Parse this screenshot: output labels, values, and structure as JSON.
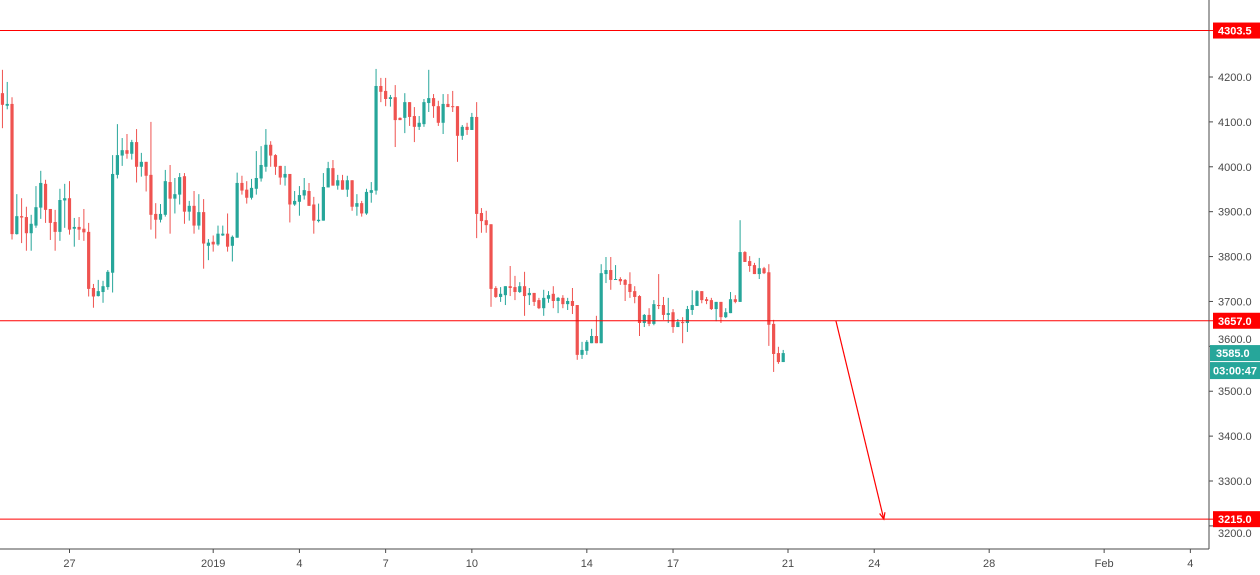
{
  "chart_data": {
    "type": "candlestick",
    "interval": "4h",
    "colors": {
      "up": "#26a69a",
      "down": "#ef5350",
      "drawing": "#ff0000",
      "axis_text": "#4a4a4a",
      "last_price_tag": "#26a69a"
    },
    "y_range": [
      3180,
      4340
    ],
    "y_ticks": [
      {
        "value": 4200,
        "label": "4200.0"
      },
      {
        "value": 4100,
        "label": "4100.0"
      },
      {
        "value": 4000,
        "label": "4000.0"
      },
      {
        "value": 3900,
        "label": "3900.0"
      },
      {
        "value": 3800,
        "label": "3800.0"
      },
      {
        "value": 3700,
        "label": "3700.0"
      },
      {
        "value": 3600,
        "label": "3600.0"
      },
      {
        "value": 3500,
        "label": "3500.0"
      },
      {
        "value": 3400,
        "label": "3400.0"
      },
      {
        "value": 3300,
        "label": "3300.0"
      },
      {
        "value": 3200,
        "label": "3200.0"
      }
    ],
    "x_ticks": [
      {
        "date": "2018-12-27",
        "label": "27"
      },
      {
        "date": "2019-01-01",
        "label": "2019"
      },
      {
        "date": "2019-01-04",
        "label": "4"
      },
      {
        "date": "2019-01-07",
        "label": "7"
      },
      {
        "date": "2019-01-10",
        "label": "10"
      },
      {
        "date": "2019-01-14",
        "label": "14"
      },
      {
        "date": "2019-01-17",
        "label": "17"
      },
      {
        "date": "2019-01-21",
        "label": "21"
      },
      {
        "date": "2019-01-24",
        "label": "24"
      },
      {
        "date": "2019-01-28",
        "label": "28"
      },
      {
        "date": "2019-02-01",
        "label": "Feb"
      },
      {
        "date": "2019-02-04",
        "label": "4"
      }
    ],
    "horizontal_lines": [
      {
        "price": 4303.5,
        "label": "4303.5"
      },
      {
        "price": 3657.0,
        "label": "3657.0"
      },
      {
        "price": 3215.0,
        "label": "3215.0"
      }
    ],
    "trend_arrow": {
      "from": {
        "time": "2019-01-22T16:00",
        "price": 3657
      },
      "to": {
        "time": "2019-01-24T08:00",
        "price": 3215
      }
    },
    "last_price": {
      "price": 3585.0,
      "label": "3585.0",
      "countdown": "03:00:47"
    },
    "columns": [
      "time",
      "open",
      "high",
      "low",
      "close"
    ],
    "candles": [
      [
        "2018-12-24T16:00",
        4164,
        4216,
        4086,
        4138
      ],
      [
        "2018-12-24T20:00",
        4136,
        4189,
        4128,
        4140
      ],
      [
        "2018-12-25T00:00",
        4140,
        4155,
        3838,
        3850
      ],
      [
        "2018-12-25T04:00",
        3850,
        3939,
        3849,
        3890
      ],
      [
        "2018-12-25T08:00",
        3890,
        3930,
        3830,
        3887
      ],
      [
        "2018-12-25T12:00",
        3888,
        3911,
        3813,
        3852
      ],
      [
        "2018-12-25T16:00",
        3852,
        3893,
        3813,
        3873
      ],
      [
        "2018-12-25T20:00",
        3869,
        3957,
        3864,
        3910
      ],
      [
        "2018-12-26T00:00",
        3909,
        3991,
        3884,
        3964
      ],
      [
        "2018-12-26T04:00",
        3962,
        3971,
        3875,
        3904
      ],
      [
        "2018-12-26T08:00",
        3906,
        3906,
        3837,
        3875
      ],
      [
        "2018-12-26T12:00",
        3877,
        3904,
        3813,
        3855
      ],
      [
        "2018-12-26T16:00",
        3855,
        3951,
        3835,
        3926
      ],
      [
        "2018-12-26T20:00",
        3925,
        3962,
        3864,
        3930
      ],
      [
        "2018-12-27T00:00",
        3930,
        3968,
        3849,
        3860
      ],
      [
        "2018-12-27T04:00",
        3862,
        3886,
        3822,
        3866
      ],
      [
        "2018-12-27T08:00",
        3866,
        3888,
        3837,
        3860
      ],
      [
        "2018-12-27T12:00",
        3862,
        3906,
        3835,
        3854
      ],
      [
        "2018-12-27T16:00",
        3855,
        3875,
        3711,
        3728
      ],
      [
        "2018-12-27T20:00",
        3730,
        3739,
        3686,
        3711
      ],
      [
        "2018-12-28T00:00",
        3712,
        3748,
        3711,
        3723
      ],
      [
        "2018-12-28T04:00",
        3721,
        3746,
        3697,
        3734
      ],
      [
        "2018-12-28T08:00",
        3732,
        3770,
        3726,
        3766
      ],
      [
        "2018-12-28T12:00",
        3764,
        4026,
        3720,
        3984
      ],
      [
        "2018-12-28T16:00",
        3982,
        4095,
        3974,
        4026
      ],
      [
        "2018-12-28T20:00",
        4025,
        4064,
        4002,
        4037
      ],
      [
        "2018-12-29T00:00",
        4037,
        4073,
        4018,
        4029
      ],
      [
        "2018-12-29T04:00",
        4029,
        4060,
        4016,
        4055
      ],
      [
        "2018-12-29T08:00",
        4055,
        4084,
        3965,
        4000
      ],
      [
        "2018-12-29T12:00",
        4000,
        4031,
        3978,
        4011
      ],
      [
        "2018-12-29T16:00",
        4011,
        4011,
        3945,
        3980
      ],
      [
        "2018-12-29T20:00",
        3982,
        4100,
        3860,
        3893
      ],
      [
        "2018-12-30T00:00",
        3895,
        3919,
        3840,
        3882
      ],
      [
        "2018-12-30T04:00",
        3882,
        3917,
        3876,
        3895
      ],
      [
        "2018-12-30T08:00",
        3893,
        3993,
        3889,
        3968
      ],
      [
        "2018-12-30T12:00",
        3966,
        4004,
        3851,
        3929
      ],
      [
        "2018-12-30T16:00",
        3929,
        3975,
        3896,
        3939
      ],
      [
        "2018-12-30T20:00",
        3938,
        3986,
        3916,
        3977
      ],
      [
        "2018-12-31T00:00",
        3979,
        3986,
        3873,
        3900
      ],
      [
        "2018-12-31T04:00",
        3900,
        3924,
        3880,
        3913
      ],
      [
        "2018-12-31T08:00",
        3913,
        3946,
        3851,
        3869
      ],
      [
        "2018-12-31T12:00",
        3869,
        3939,
        3860,
        3899
      ],
      [
        "2018-12-31T16:00",
        3899,
        3928,
        3773,
        3829
      ],
      [
        "2018-12-31T20:00",
        3824,
        3839,
        3792,
        3831
      ],
      [
        "2019-01-01T00:00",
        3833,
        3847,
        3811,
        3827
      ],
      [
        "2019-01-01T04:00",
        3827,
        3869,
        3824,
        3851
      ],
      [
        "2019-01-01T08:00",
        3847,
        3869,
        3846,
        3851
      ],
      [
        "2019-01-01T12:00",
        3851,
        3896,
        3811,
        3822
      ],
      [
        "2019-01-01T16:00",
        3824,
        3847,
        3789,
        3844
      ],
      [
        "2019-01-01T20:00",
        3842,
        3987,
        3842,
        3964
      ],
      [
        "2019-01-02T00:00",
        3964,
        3980,
        3938,
        3947
      ],
      [
        "2019-01-02T04:00",
        3949,
        3968,
        3918,
        3931
      ],
      [
        "2019-01-02T08:00",
        3931,
        3973,
        3927,
        3953
      ],
      [
        "2019-01-02T12:00",
        3951,
        4035,
        3938,
        3975
      ],
      [
        "2019-01-02T16:00",
        3974,
        4046,
        3967,
        4004
      ],
      [
        "2019-01-02T20:00",
        4000,
        4084,
        3989,
        4049
      ],
      [
        "2019-01-03T00:00",
        4049,
        4057,
        4000,
        4025
      ],
      [
        "2019-01-03T04:00",
        4026,
        4028,
        3982,
        4000
      ],
      [
        "2019-01-03T08:00",
        4002,
        4002,
        3960,
        3976
      ],
      [
        "2019-01-03T12:00",
        3976,
        4002,
        3958,
        3984
      ],
      [
        "2019-01-03T16:00",
        3984,
        3984,
        3876,
        3916
      ],
      [
        "2019-01-03T20:00",
        3916,
        3946,
        3913,
        3924
      ],
      [
        "2019-01-04T00:00",
        3922,
        3957,
        3891,
        3937
      ],
      [
        "2019-01-04T04:00",
        3936,
        3975,
        3927,
        3948
      ],
      [
        "2019-01-04T08:00",
        3946,
        3964,
        3913,
        3913
      ],
      [
        "2019-01-04T12:00",
        3916,
        3933,
        3851,
        3880
      ],
      [
        "2019-01-04T16:00",
        3879,
        3918,
        3876,
        3882
      ],
      [
        "2019-01-04T20:00",
        3880,
        3986,
        3880,
        3955
      ],
      [
        "2019-01-05T00:00",
        3954,
        4011,
        3954,
        3997
      ],
      [
        "2019-01-05T04:00",
        3997,
        4015,
        3958,
        3958
      ],
      [
        "2019-01-05T08:00",
        3958,
        3982,
        3949,
        3970
      ],
      [
        "2019-01-05T12:00",
        3970,
        3982,
        3949,
        3949
      ],
      [
        "2019-01-05T16:00",
        3949,
        3980,
        3933,
        3970
      ],
      [
        "2019-01-05T20:00",
        3970,
        3970,
        3902,
        3911
      ],
      [
        "2019-01-06T00:00",
        3911,
        3939,
        3891,
        3919
      ],
      [
        "2019-01-06T04:00",
        3919,
        3924,
        3889,
        3896
      ],
      [
        "2019-01-06T08:00",
        3896,
        3951,
        3893,
        3944
      ],
      [
        "2019-01-06T12:00",
        3942,
        3966,
        3920,
        3948
      ],
      [
        "2019-01-06T16:00",
        3947,
        4218,
        3938,
        4180
      ],
      [
        "2019-01-06T20:00",
        4180,
        4198,
        4144,
        4167
      ],
      [
        "2019-01-07T00:00",
        4169,
        4198,
        4135,
        4151
      ],
      [
        "2019-01-07T04:00",
        4151,
        4160,
        4134,
        4155
      ],
      [
        "2019-01-07T08:00",
        4155,
        4182,
        4044,
        4104
      ],
      [
        "2019-01-07T12:00",
        4109,
        4110,
        4104,
        4104
      ],
      [
        "2019-01-07T16:00",
        4109,
        4164,
        4075,
        4144
      ],
      [
        "2019-01-07T20:00",
        4144,
        4144,
        4091,
        4111
      ],
      [
        "2019-01-08T00:00",
        4113,
        4133,
        4055,
        4089
      ],
      [
        "2019-01-08T04:00",
        4089,
        4113,
        4082,
        4098
      ],
      [
        "2019-01-08T08:00",
        4095,
        4151,
        4089,
        4144
      ],
      [
        "2019-01-08T12:00",
        4142,
        4216,
        4122,
        4153
      ],
      [
        "2019-01-08T16:00",
        4153,
        4162,
        4109,
        4135
      ],
      [
        "2019-01-08T20:00",
        4135,
        4147,
        4091,
        4098
      ],
      [
        "2019-01-09T00:00",
        4098,
        4162,
        4073,
        4140
      ],
      [
        "2019-01-09T04:00",
        4140,
        4162,
        4133,
        4133
      ],
      [
        "2019-01-09T08:00",
        4135,
        4169,
        4122,
        4133
      ],
      [
        "2019-01-09T12:00",
        4135,
        4135,
        4011,
        4069
      ],
      [
        "2019-01-09T16:00",
        4069,
        4093,
        4060,
        4089
      ],
      [
        "2019-01-09T20:00",
        4089,
        4098,
        4071,
        4082
      ],
      [
        "2019-01-10T00:00",
        4082,
        4120,
        4082,
        4111
      ],
      [
        "2019-01-10T04:00",
        4111,
        4144,
        3841,
        3895
      ],
      [
        "2019-01-10T08:00",
        3897,
        3908,
        3853,
        3879
      ],
      [
        "2019-01-10T12:00",
        3881,
        3902,
        3853,
        3870
      ],
      [
        "2019-01-10T16:00",
        3872,
        3872,
        3688,
        3728
      ],
      [
        "2019-01-10T20:00",
        3730,
        3734,
        3708,
        3710
      ],
      [
        "2019-01-11T00:00",
        3710,
        3732,
        3699,
        3717
      ],
      [
        "2019-01-11T04:00",
        3714,
        3734,
        3692,
        3734
      ],
      [
        "2019-01-11T08:00",
        3734,
        3779,
        3712,
        3730
      ],
      [
        "2019-01-11T12:00",
        3732,
        3757,
        3703,
        3721
      ],
      [
        "2019-01-11T16:00",
        3721,
        3743,
        3719,
        3734
      ],
      [
        "2019-01-11T20:00",
        3734,
        3766,
        3668,
        3712
      ],
      [
        "2019-01-12T00:00",
        3714,
        3730,
        3692,
        3719
      ],
      [
        "2019-01-12T04:00",
        3719,
        3719,
        3690,
        3699
      ],
      [
        "2019-01-12T08:00",
        3703,
        3708,
        3683,
        3685
      ],
      [
        "2019-01-12T12:00",
        3685,
        3726,
        3668,
        3708
      ],
      [
        "2019-01-12T16:00",
        3706,
        3723,
        3697,
        3714
      ],
      [
        "2019-01-12T20:00",
        3717,
        3734,
        3685,
        3701
      ],
      [
        "2019-01-13T00:00",
        3701,
        3710,
        3674,
        3708
      ],
      [
        "2019-01-13T04:00",
        3708,
        3714,
        3685,
        3694
      ],
      [
        "2019-01-13T08:00",
        3694,
        3708,
        3681,
        3701
      ],
      [
        "2019-01-13T12:00",
        3701,
        3730,
        3672,
        3690
      ],
      [
        "2019-01-13T16:00",
        3692,
        3692,
        3570,
        3581
      ],
      [
        "2019-01-13T20:00",
        3581,
        3610,
        3572,
        3592
      ],
      [
        "2019-01-14T00:00",
        3590,
        3614,
        3581,
        3610
      ],
      [
        "2019-01-14T04:00",
        3607,
        3639,
        3607,
        3623
      ],
      [
        "2019-01-14T08:00",
        3623,
        3668,
        3607,
        3607
      ],
      [
        "2019-01-14T12:00",
        3607,
        3783,
        3607,
        3763
      ],
      [
        "2019-01-14T16:00",
        3761,
        3799,
        3741,
        3770
      ],
      [
        "2019-01-14T20:00",
        3770,
        3799,
        3726,
        3748
      ],
      [
        "2019-01-15T00:00",
        3748,
        3781,
        3748,
        3750
      ],
      [
        "2019-01-15T04:00",
        3750,
        3754,
        3737,
        3745
      ],
      [
        "2019-01-15T08:00",
        3748,
        3750,
        3701,
        3737
      ],
      [
        "2019-01-15T12:00",
        3739,
        3765,
        3708,
        3721
      ],
      [
        "2019-01-15T16:00",
        3723,
        3734,
        3696,
        3710
      ],
      [
        "2019-01-15T20:00",
        3712,
        3714,
        3623,
        3652
      ],
      [
        "2019-01-16T00:00",
        3652,
        3672,
        3643,
        3670
      ],
      [
        "2019-01-16T04:00",
        3670,
        3685,
        3645,
        3650
      ],
      [
        "2019-01-16T08:00",
        3650,
        3703,
        3647,
        3694
      ],
      [
        "2019-01-16T12:00",
        3692,
        3761,
        3683,
        3690
      ],
      [
        "2019-01-16T16:00",
        3692,
        3710,
        3659,
        3670
      ],
      [
        "2019-01-16T20:00",
        3670,
        3708,
        3652,
        3674
      ],
      [
        "2019-01-17T00:00",
        3676,
        3683,
        3630,
        3643
      ],
      [
        "2019-01-17T04:00",
        3643,
        3661,
        3643,
        3654
      ],
      [
        "2019-01-17T08:00",
        3654,
        3665,
        3607,
        3652
      ],
      [
        "2019-01-17T12:00",
        3652,
        3690,
        3632,
        3683
      ],
      [
        "2019-01-17T16:00",
        3681,
        3725,
        3670,
        3692
      ],
      [
        "2019-01-17T20:00",
        3690,
        3725,
        3690,
        3723
      ],
      [
        "2019-01-18T00:00",
        3723,
        3723,
        3696,
        3703
      ],
      [
        "2019-01-18T04:00",
        3705,
        3710,
        3694,
        3701
      ],
      [
        "2019-01-18T08:00",
        3703,
        3708,
        3681,
        3683
      ],
      [
        "2019-01-18T12:00",
        3683,
        3699,
        3656,
        3699
      ],
      [
        "2019-01-18T16:00",
        3699,
        3699,
        3652,
        3665
      ],
      [
        "2019-01-18T20:00",
        3665,
        3685,
        3663,
        3676
      ],
      [
        "2019-01-19T00:00",
        3674,
        3721,
        3674,
        3705
      ],
      [
        "2019-01-19T04:00",
        3705,
        3714,
        3696,
        3699
      ],
      [
        "2019-01-19T08:00",
        3699,
        3881,
        3699,
        3810
      ],
      [
        "2019-01-19T12:00",
        3810,
        3812,
        3788,
        3788
      ],
      [
        "2019-01-19T16:00",
        3790,
        3801,
        3766,
        3779
      ],
      [
        "2019-01-19T20:00",
        3781,
        3786,
        3761,
        3761
      ],
      [
        "2019-01-20T00:00",
        3761,
        3797,
        3750,
        3774
      ],
      [
        "2019-01-20T04:00",
        3774,
        3777,
        3761,
        3763
      ],
      [
        "2019-01-20T08:00",
        3765,
        3783,
        3601,
        3648
      ],
      [
        "2019-01-20T12:00",
        3650,
        3659,
        3543,
        3583
      ],
      [
        "2019-01-20T16:00",
        3585,
        3599,
        3561,
        3565
      ],
      [
        "2019-01-20T20:00",
        3565,
        3592,
        3565,
        3585
      ]
    ]
  }
}
